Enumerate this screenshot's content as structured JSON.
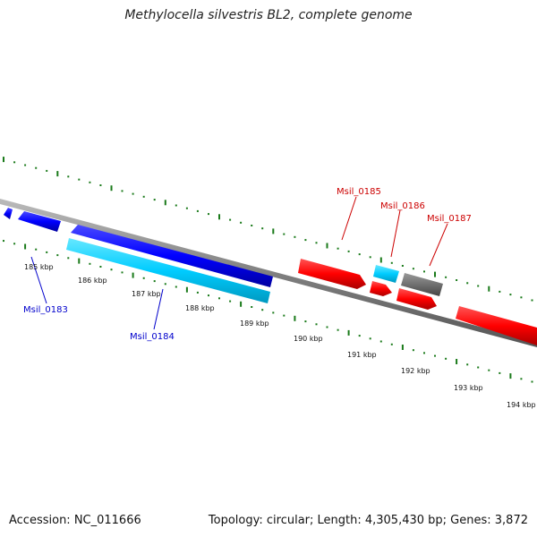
{
  "title": "Methylocella silvestris BL2, complete genome",
  "footer": {
    "accession": "Accession: NC_011666",
    "stats": "Topology: circular; Length: 4,305,430 bp; Genes: 3,872"
  },
  "colors": {
    "background": "#ffffff",
    "backbone": "#808080",
    "tick": "#1a7a1a",
    "forward_gene": "#ff0000",
    "reverse_gene": "#0000ff",
    "cyan_gene": "#00ccff",
    "gray_gene": "#707070"
  },
  "scale_labels": [
    "185 kbp",
    "186 kbp",
    "187 kbp",
    "188 kbp",
    "189 kbp",
    "190 kbp",
    "191 kbp",
    "192 kbp",
    "193 kbp",
    "194 kbp"
  ],
  "gene_labels": {
    "msil_0183": "Msil_0183",
    "msil_0184": "Msil_0184",
    "msil_0185": "Msil_0185",
    "msil_0186": "Msil_0186",
    "msil_0187": "Msil_0187"
  }
}
